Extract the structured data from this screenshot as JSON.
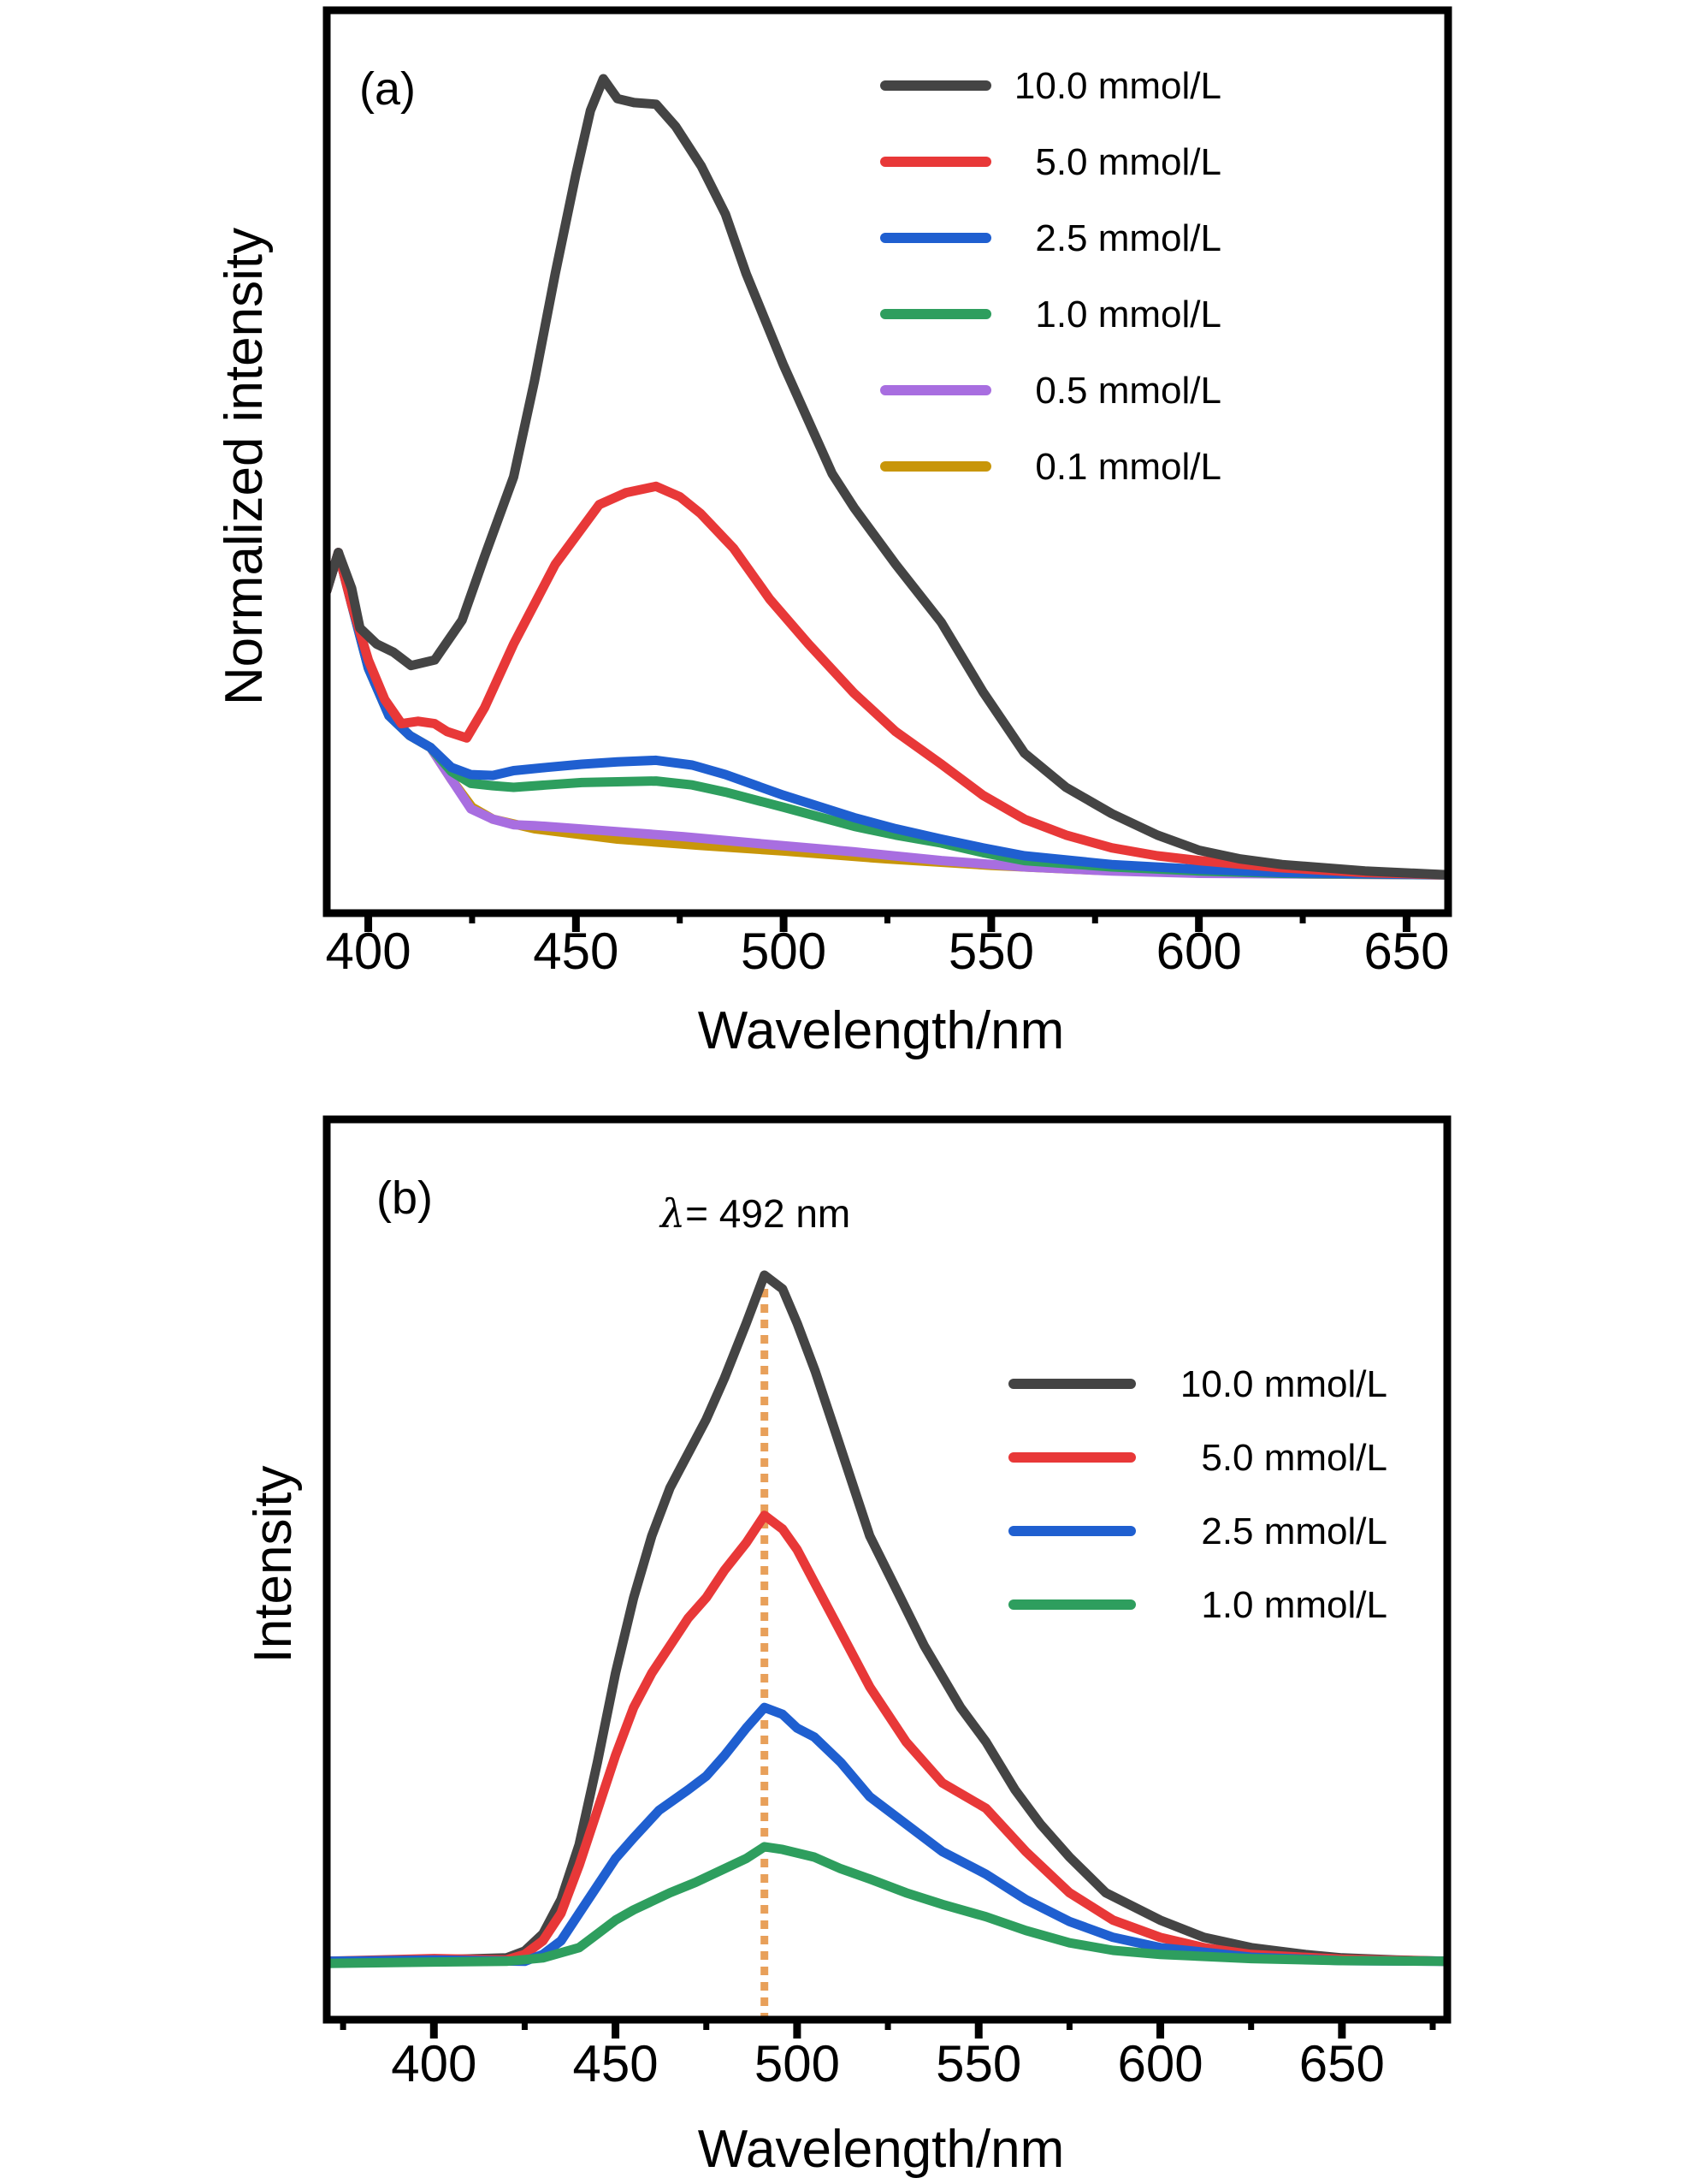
{
  "chart_data": [
    {
      "type": "line",
      "panel_label": "(a)",
      "title": "",
      "xlabel": "Wavelength/nm",
      "ylabel": "Normalized intensity",
      "xlim": [
        390,
        660
      ],
      "ylim": [
        -0.048,
        1.086
      ],
      "xticks": [
        400,
        450,
        500,
        550,
        600,
        650
      ],
      "xtick_labels": [
        "400",
        "450",
        "500",
        "550",
        "600",
        "650"
      ],
      "minor_xticks": [
        425,
        475,
        525,
        575,
        625
      ],
      "yticks": [],
      "grid": false,
      "legend_position": "top-right",
      "series": [
        {
          "name": "10.0 mmol/L",
          "color": "#444444",
          "x": [
            390,
            392.8,
            396,
            398,
            402,
            406,
            410.3,
            416,
            422.6,
            428,
            435,
            440,
            445,
            450,
            453.5,
            456.6,
            460,
            464,
            469.3,
            474,
            480.2,
            486,
            491,
            500,
            511.7,
            517,
            527,
            538,
            548,
            558,
            568,
            579,
            590,
            600,
            610,
            620,
            640,
            660
          ],
          "y": [
            0.357,
            0.405,
            0.36,
            0.31,
            0.29,
            0.28,
            0.263,
            0.27,
            0.32,
            0.4,
            0.5,
            0.62,
            0.755,
            0.88,
            0.96,
            1.0,
            0.975,
            0.97,
            0.968,
            0.94,
            0.89,
            0.83,
            0.755,
            0.64,
            0.504,
            0.461,
            0.39,
            0.317,
            0.23,
            0.153,
            0.11,
            0.077,
            0.05,
            0.031,
            0.02,
            0.013,
            0.005,
            0.0
          ]
        },
        {
          "name": "5.0 mmol/L",
          "color": "#e83838",
          "x": [
            390,
            392.8,
            396,
            400,
            404,
            408,
            412,
            416,
            419,
            423.7,
            428,
            435,
            445,
            455.6,
            462,
            469.3,
            475,
            480,
            488,
            496.7,
            506,
            517,
            527,
            538,
            548,
            558,
            568,
            579,
            590,
            600,
            620,
            640,
            660
          ],
          "y": [
            0.357,
            0.405,
            0.34,
            0.27,
            0.22,
            0.19,
            0.193,
            0.19,
            0.18,
            0.172,
            0.21,
            0.29,
            0.39,
            0.465,
            0.48,
            0.488,
            0.475,
            0.454,
            0.41,
            0.346,
            0.29,
            0.228,
            0.18,
            0.139,
            0.1,
            0.07,
            0.05,
            0.034,
            0.024,
            0.018,
            0.009,
            0.003,
            0.0
          ]
        },
        {
          "name": "2.5 mmol/L",
          "color": "#1f5fd0",
          "x": [
            390,
            392.8,
            396,
            400,
            405,
            410,
            415,
            420,
            424.7,
            430,
            435,
            443,
            451.4,
            460,
            469.3,
            478,
            486,
            500,
            517,
            527,
            538,
            548,
            558,
            579,
            600,
            620,
            660
          ],
          "y": [
            0.357,
            0.405,
            0.34,
            0.26,
            0.2,
            0.175,
            0.16,
            0.135,
            0.126,
            0.125,
            0.131,
            0.135,
            0.139,
            0.142,
            0.144,
            0.138,
            0.126,
            0.1,
            0.072,
            0.058,
            0.045,
            0.034,
            0.024,
            0.013,
            0.007,
            0.003,
            0.0
          ]
        },
        {
          "name": "1.0 mmol/L",
          "color": "#2e9e5e",
          "x": [
            390,
            392.8,
            396,
            400,
            405,
            410,
            415,
            420,
            424.7,
            430,
            435,
            443,
            451.4,
            460,
            469.3,
            478,
            486,
            500,
            517,
            527,
            538,
            548,
            558,
            579,
            600,
            620,
            660
          ],
          "y": [
            0.357,
            0.405,
            0.34,
            0.26,
            0.2,
            0.175,
            0.16,
            0.13,
            0.115,
            0.112,
            0.11,
            0.113,
            0.116,
            0.117,
            0.118,
            0.113,
            0.104,
            0.085,
            0.061,
            0.05,
            0.04,
            0.028,
            0.018,
            0.01,
            0.005,
            0.002,
            0.0
          ]
        },
        {
          "name": "0.5 mmol/L",
          "color": "#a86ee0",
          "x": [
            390,
            392.8,
            396,
            400,
            405,
            410,
            415,
            420,
            424.7,
            430,
            435,
            440,
            455.6,
            476,
            497,
            517,
            538,
            558,
            579,
            600,
            660
          ],
          "y": [
            0.357,
            0.405,
            0.34,
            0.26,
            0.2,
            0.175,
            0.16,
            0.12,
            0.083,
            0.07,
            0.063,
            0.062,
            0.056,
            0.048,
            0.038,
            0.029,
            0.018,
            0.01,
            0.005,
            0.002,
            0.0
          ]
        },
        {
          "name": "0.1 mmol/L",
          "color": "#c8960a",
          "x": [
            390,
            392.8,
            396,
            400,
            405,
            410,
            415,
            420,
            425,
            430,
            440,
            460,
            480,
            500,
            525,
            550,
            575,
            600,
            630,
            660
          ],
          "y": [
            0.357,
            0.405,
            0.34,
            0.26,
            0.2,
            0.175,
            0.16,
            0.12,
            0.085,
            0.07,
            0.058,
            0.045,
            0.037,
            0.03,
            0.02,
            0.012,
            0.006,
            0.003,
            0.001,
            0.0
          ]
        }
      ]
    },
    {
      "type": "line",
      "panel_label": "(b)",
      "title": "",
      "xlabel": "Wavelength/nm",
      "ylabel": "Intensity",
      "xlim": [
        370.5,
        679
      ],
      "ylim": [
        -0.085,
        1.227
      ],
      "xticks": [
        400,
        450,
        500,
        550,
        600,
        650
      ],
      "xtick_labels": [
        "400",
        "450",
        "500",
        "550",
        "600",
        "650"
      ],
      "minor_xticks": [
        375,
        425,
        475,
        525,
        575,
        625,
        675
      ],
      "yticks": [],
      "grid": false,
      "legend_position": "right",
      "annotation": {
        "text": "= 492 nm",
        "symbol": "λ",
        "x": 491
      },
      "series": [
        {
          "name": "10.0 mmol/L",
          "color": "#444444",
          "x": [
            370.5,
            400,
            420,
            425,
            430,
            435,
            440,
            445,
            450,
            455,
            460,
            465,
            470,
            475,
            480,
            486,
            491,
            496,
            500,
            505,
            510,
            515,
            520,
            528,
            535,
            545,
            552,
            560,
            567,
            575,
            585,
            600,
            612,
            625,
            640,
            650,
            665,
            679
          ],
          "y": [
            0.0,
            0.002,
            0.005,
            0.015,
            0.04,
            0.09,
            0.17,
            0.29,
            0.42,
            0.53,
            0.62,
            0.69,
            0.74,
            0.79,
            0.85,
            0.93,
            1.0,
            0.98,
            0.93,
            0.86,
            0.78,
            0.7,
            0.62,
            0.535,
            0.46,
            0.37,
            0.32,
            0.25,
            0.2,
            0.152,
            0.1,
            0.06,
            0.035,
            0.02,
            0.01,
            0.005,
            0.002,
            0.0
          ]
        },
        {
          "name": "5.0 mmol/L",
          "color": "#e83838",
          "x": [
            370.5,
            400,
            420,
            425,
            430,
            435,
            440,
            445,
            450,
            455,
            460,
            465,
            470,
            475,
            480,
            486,
            491,
            496,
            500,
            505,
            510,
            520,
            530,
            540,
            552,
            563,
            575,
            587,
            600,
            612,
            625,
            650,
            679
          ],
          "y": [
            0.0,
            0.004,
            0.002,
            0.01,
            0.03,
            0.07,
            0.14,
            0.22,
            0.3,
            0.37,
            0.42,
            0.46,
            0.5,
            0.53,
            0.57,
            0.61,
            0.65,
            0.63,
            0.6,
            0.55,
            0.5,
            0.4,
            0.32,
            0.26,
            0.223,
            0.16,
            0.1,
            0.06,
            0.035,
            0.02,
            0.01,
            0.003,
            0.0
          ]
        },
        {
          "name": "2.5 mmol/L",
          "color": "#1f5fd0",
          "x": [
            370.5,
            400,
            425,
            430,
            435,
            440,
            445,
            450,
            455,
            462,
            470,
            475,
            480,
            486,
            491,
            496,
            500,
            504.7,
            512,
            520,
            530,
            540,
            552,
            563,
            575,
            587,
            600,
            625,
            650,
            679
          ],
          "y": [
            0.0,
            0.002,
            0.0,
            0.01,
            0.03,
            0.07,
            0.11,
            0.15,
            0.18,
            0.22,
            0.25,
            0.27,
            0.3,
            0.34,
            0.37,
            0.36,
            0.34,
            0.327,
            0.29,
            0.24,
            0.2,
            0.16,
            0.127,
            0.09,
            0.058,
            0.035,
            0.02,
            0.006,
            0.001,
            0.0
          ]
        },
        {
          "name": "1.0 mmol/L",
          "color": "#2e9e5e",
          "x": [
            370.5,
            400,
            420,
            430,
            440,
            445,
            450,
            455,
            465,
            472,
            480,
            486,
            491,
            496,
            504.7,
            512,
            520,
            530,
            540,
            552,
            563,
            575,
            587,
            600,
            625,
            650,
            679
          ],
          "y": [
            -0.003,
            -0.001,
            0.0,
            0.005,
            0.02,
            0.04,
            0.06,
            0.075,
            0.1,
            0.115,
            0.135,
            0.15,
            0.167,
            0.163,
            0.152,
            0.135,
            0.12,
            0.1,
            0.083,
            0.065,
            0.045,
            0.027,
            0.016,
            0.01,
            0.004,
            0.001,
            0.0
          ]
        }
      ]
    }
  ]
}
